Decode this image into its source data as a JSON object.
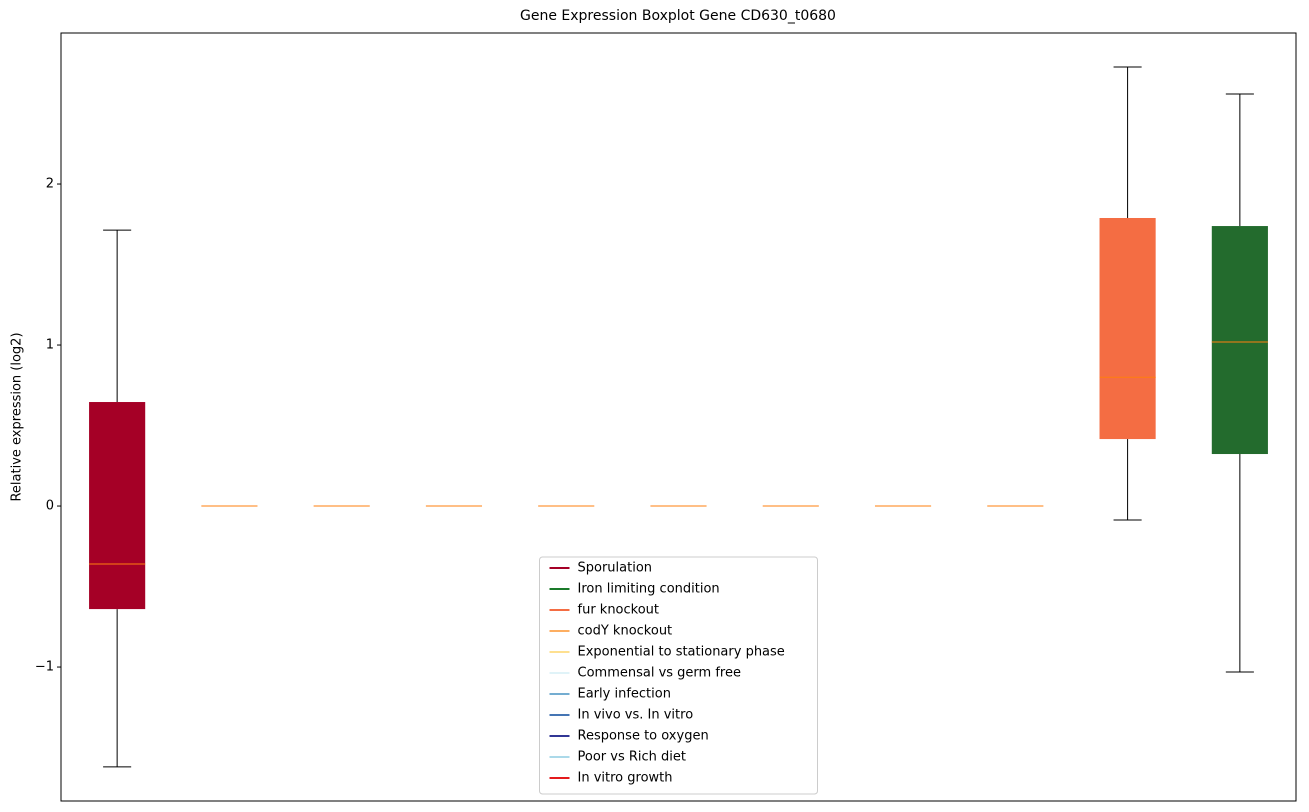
{
  "chart_data": {
    "type": "box",
    "title": "Gene Expression Boxplot Gene CD630_t0680",
    "y_label": "Relative expression (log2)",
    "ylim": [
      -1.832,
      2.938
    ],
    "yticks": [
      {
        "value": -1,
        "label": "−1"
      },
      0,
      1,
      2
    ],
    "median_color": "#ff7f0e",
    "boxes": [
      {
        "color": "#a50026",
        "whislo": -1.62,
        "q1": -0.64,
        "med": -0.36,
        "q3": 0.646,
        "whishi": 1.714
      },
      {
        "color": "#fdae61",
        "whislo": 0,
        "q1": 0,
        "med": 0,
        "q3": 0,
        "whishi": 0
      },
      {
        "color": "#fee090",
        "whislo": 0,
        "q1": 0,
        "med": 0,
        "q3": 0,
        "whishi": 0
      },
      {
        "color": "#e0f3f8",
        "whislo": 0,
        "q1": 0,
        "med": 0,
        "q3": 0,
        "whishi": 0
      },
      {
        "color": "#74add1",
        "whislo": 0,
        "q1": 0,
        "med": 0,
        "q3": 0,
        "whishi": 0
      },
      {
        "color": "#4575b4",
        "whislo": 0,
        "q1": 0,
        "med": 0,
        "q3": 0,
        "whishi": 0
      },
      {
        "color": "#313695",
        "whislo": 0,
        "q1": 0,
        "med": 0,
        "q3": 0,
        "whishi": 0
      },
      {
        "color": "#abd9e9",
        "whislo": 0,
        "q1": 0,
        "med": 0,
        "q3": 0,
        "whishi": 0
      },
      {
        "color": "#e41a1c",
        "whislo": 0,
        "q1": 0,
        "med": 0,
        "q3": 0,
        "whishi": 0
      },
      {
        "color": "#f46d43",
        "whislo": -0.087,
        "q1": 0.416,
        "med": 0.8,
        "q3": 1.789,
        "whishi": 2.727
      },
      {
        "color": "#236b2d",
        "whislo": -1.031,
        "q1": 0.323,
        "med": 1.019,
        "q3": 1.739,
        "whishi": 2.559
      }
    ],
    "legend_position": "lower center",
    "legend": [
      {
        "name": "Sporulation",
        "color": "#a50026"
      },
      {
        "name": "Iron limiting condition",
        "color": "#1a7a2a"
      },
      {
        "name": "fur knockout",
        "color": "#f46d43"
      },
      {
        "name": "codY knockout",
        "color": "#fdae61"
      },
      {
        "name": "Exponential to stationary phase",
        "color": "#fee090"
      },
      {
        "name": "Commensal vs germ free",
        "color": "#e0f3f8"
      },
      {
        "name": "Early infection",
        "color": "#74add1"
      },
      {
        "name": "In vivo vs. In vitro",
        "color": "#4575b4"
      },
      {
        "name": "Response to oxygen",
        "color": "#313695"
      },
      {
        "name": "Poor vs Rich diet",
        "color": "#abd9e9"
      },
      {
        "name": "In vitro growth",
        "color": "#e41a1c"
      }
    ]
  }
}
